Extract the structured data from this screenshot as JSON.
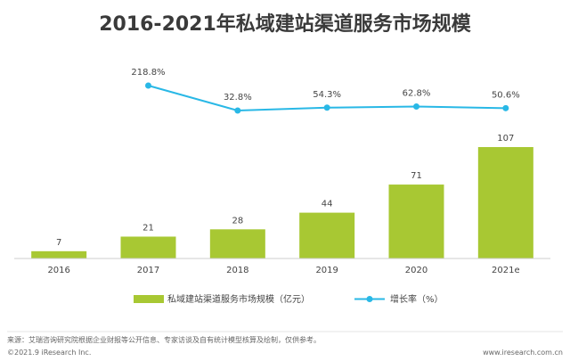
{
  "title": "2016-2021年私域建站渠道服务市场规模",
  "chart_data": {
    "type": "bar",
    "categories": [
      "2016",
      "2017",
      "2018",
      "2019",
      "2020",
      "2021e"
    ],
    "series": [
      {
        "name": "私域建站渠道服务市场规模（亿元）",
        "type": "bar",
        "values": [
          7,
          21,
          28,
          44,
          71,
          107
        ],
        "color": "#a8c833"
      },
      {
        "name": "增长率（%）",
        "type": "line",
        "x": [
          "2017",
          "2018",
          "2019",
          "2020",
          "2021e"
        ],
        "values": [
          218.8,
          32.8,
          54.3,
          62.8,
          50.6
        ],
        "labels": [
          "218.8%",
          "32.8%",
          "54.3%",
          "62.8%",
          "50.6%"
        ],
        "color": "#29b8e6"
      }
    ],
    "legend": "bottom-center"
  },
  "footer": {
    "source": "来源：艾瑞咨询研究院根据企业财报等公开信息、专家访谈及自有统计模型核算及绘制，仅供参考。",
    "copyright": "©2021.9 iResearch Inc.",
    "website": "www.iresearch.com.cn"
  }
}
